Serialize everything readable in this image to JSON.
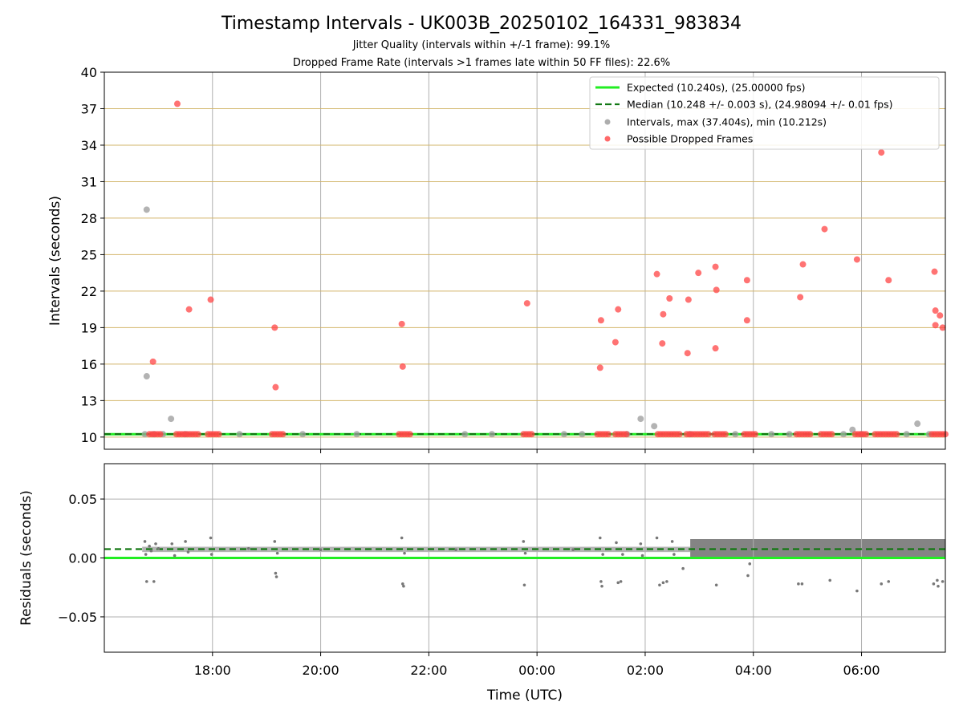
{
  "title": "Timestamp Intervals - UK003B_20250102_164331_983834",
  "subtitle1": "Jitter Quality (intervals within +/-1 frame): 99.1%",
  "subtitle2": "Dropped Frame Rate (intervals >1 frames late within 50 FF files): 22.6%",
  "colors": {
    "expected": "#22ee22",
    "median": "#117711",
    "interval_points": "#999999",
    "dropped_points": "#ff4444",
    "residual_points": "#777777",
    "gridline_top": "#d2b56a",
    "gridline": "#b0b0b0"
  },
  "chart_data": [
    {
      "type": "scatter",
      "ylabel": "Intervals (seconds)",
      "xlabel": "",
      "ylim": [
        9,
        40
      ],
      "yticks": [
        10,
        13,
        16,
        19,
        22,
        25,
        28,
        31,
        34,
        37,
        40
      ],
      "xlim_hours": [
        16.0,
        31.55
      ],
      "legend_placement": "top-right",
      "legend": [
        "Expected (10.240s), (25.00000 fps)",
        "Median (10.248 +/- 0.003 s), (24.98094 +/- 0.01 fps)",
        "Intervals, max (37.404s), min (10.212s)",
        "Possible Dropped Frames"
      ],
      "expected_value": 10.24,
      "median_value": 10.248,
      "series": [
        {
          "name": "Intervals, max (37.404s), min (10.212s)",
          "points": [
            [
              "16:47",
              28.7
            ],
            [
              "16:47",
              15.0
            ],
            [
              "17:14",
              11.5
            ],
            [
              "01:55",
              11.5
            ],
            [
              "02:10",
              10.9
            ],
            [
              "05:50",
              10.6
            ],
            [
              "07:02",
              11.1
            ],
            [
              "16:45",
              10.24
            ],
            [
              "16:55",
              10.24
            ],
            [
              "17:05",
              10.24
            ],
            [
              "17:30",
              10.24
            ],
            [
              "18:30",
              10.24
            ],
            [
              "19:40",
              10.24
            ],
            [
              "20:40",
              10.24
            ],
            [
              "22:40",
              10.24
            ],
            [
              "23:10",
              10.24
            ],
            [
              "00:30",
              10.24
            ],
            [
              "00:50",
              10.24
            ],
            [
              "01:40",
              10.24
            ],
            [
              "02:50",
              10.24
            ],
            [
              "03:40",
              10.24
            ],
            [
              "04:20",
              10.24
            ],
            [
              "04:40",
              10.24
            ],
            [
              "05:40",
              10.24
            ],
            [
              "06:00",
              10.24
            ],
            [
              "06:50",
              10.24
            ],
            [
              "07:15",
              10.24
            ]
          ]
        },
        {
          "name": "Possible Dropped Frames",
          "points": [
            [
              "17:21",
              37.4
            ],
            [
              "16:54",
              16.2
            ],
            [
              "17:34",
              20.5
            ],
            [
              "17:58",
              21.3
            ],
            [
              "19:09",
              19.0
            ],
            [
              "19:10",
              14.1
            ],
            [
              "21:30",
              19.3
            ],
            [
              "21:31",
              15.8
            ],
            [
              "23:49",
              21.0
            ],
            [
              "01:11",
              19.6
            ],
            [
              "01:10",
              15.7
            ],
            [
              "01:27",
              17.8
            ],
            [
              "01:30",
              20.5
            ],
            [
              "02:13",
              23.4
            ],
            [
              "02:19",
              17.7
            ],
            [
              "02:20",
              20.1
            ],
            [
              "02:27",
              21.4
            ],
            [
              "02:47",
              16.9
            ],
            [
              "02:48",
              21.3
            ],
            [
              "02:59",
              23.5
            ],
            [
              "03:18",
              24.0
            ],
            [
              "03:19",
              22.1
            ],
            [
              "03:18",
              17.3
            ],
            [
              "03:53",
              22.9
            ],
            [
              "03:53",
              19.6
            ],
            [
              "04:52",
              21.5
            ],
            [
              "04:55",
              24.2
            ],
            [
              "05:19",
              27.1
            ],
            [
              "05:55",
              24.6
            ],
            [
              "06:22",
              33.4
            ],
            [
              "06:30",
              22.9
            ],
            [
              "07:21",
              23.6
            ],
            [
              "07:22",
              20.4
            ],
            [
              "07:22",
              19.2
            ],
            [
              "07:27",
              20.0
            ],
            [
              "07:30",
              19.0
            ],
            [
              "16:50",
              10.24
            ],
            [
              "16:53",
              10.24
            ],
            [
              "16:56",
              10.24
            ],
            [
              "16:59",
              10.24
            ],
            [
              "17:02",
              10.24
            ],
            [
              "17:20",
              10.24
            ],
            [
              "17:23",
              10.24
            ],
            [
              "17:26",
              10.24
            ],
            [
              "17:29",
              10.24
            ],
            [
              "17:32",
              10.24
            ],
            [
              "17:35",
              10.24
            ],
            [
              "17:38",
              10.24
            ],
            [
              "17:41",
              10.24
            ],
            [
              "17:44",
              10.24
            ],
            [
              "17:55",
              10.24
            ],
            [
              "17:58",
              10.24
            ],
            [
              "18:01",
              10.24
            ],
            [
              "18:04",
              10.24
            ],
            [
              "18:07",
              10.24
            ],
            [
              "19:06",
              10.24
            ],
            [
              "19:09",
              10.24
            ],
            [
              "19:12",
              10.24
            ],
            [
              "19:15",
              10.24
            ],
            [
              "19:18",
              10.24
            ],
            [
              "21:27",
              10.24
            ],
            [
              "21:30",
              10.24
            ],
            [
              "21:33",
              10.24
            ],
            [
              "21:36",
              10.24
            ],
            [
              "21:39",
              10.24
            ],
            [
              "23:45",
              10.24
            ],
            [
              "23:48",
              10.24
            ],
            [
              "23:51",
              10.24
            ],
            [
              "23:54",
              10.24
            ],
            [
              "01:07",
              10.24
            ],
            [
              "01:10",
              10.24
            ],
            [
              "01:13",
              10.24
            ],
            [
              "01:16",
              10.24
            ],
            [
              "01:19",
              10.24
            ],
            [
              "01:27",
              10.24
            ],
            [
              "01:30",
              10.24
            ],
            [
              "01:33",
              10.24
            ],
            [
              "01:36",
              10.24
            ],
            [
              "01:39",
              10.24
            ],
            [
              "02:14",
              10.24
            ],
            [
              "02:17",
              10.24
            ],
            [
              "02:20",
              10.24
            ],
            [
              "02:23",
              10.24
            ],
            [
              "02:26",
              10.24
            ],
            [
              "02:29",
              10.24
            ],
            [
              "02:32",
              10.24
            ],
            [
              "02:35",
              10.24
            ],
            [
              "02:38",
              10.24
            ],
            [
              "02:46",
              10.24
            ],
            [
              "02:49",
              10.24
            ],
            [
              "02:52",
              10.24
            ],
            [
              "02:55",
              10.24
            ],
            [
              "02:58",
              10.24
            ],
            [
              "03:01",
              10.24
            ],
            [
              "03:04",
              10.24
            ],
            [
              "03:07",
              10.24
            ],
            [
              "03:10",
              10.24
            ],
            [
              "03:17",
              10.24
            ],
            [
              "03:20",
              10.24
            ],
            [
              "03:23",
              10.24
            ],
            [
              "03:26",
              10.24
            ],
            [
              "03:29",
              10.24
            ],
            [
              "03:50",
              10.24
            ],
            [
              "03:53",
              10.24
            ],
            [
              "03:56",
              10.24
            ],
            [
              "03:59",
              10.24
            ],
            [
              "04:02",
              10.24
            ],
            [
              "04:48",
              10.24
            ],
            [
              "04:51",
              10.24
            ],
            [
              "04:54",
              10.24
            ],
            [
              "04:57",
              10.24
            ],
            [
              "05:00",
              10.24
            ],
            [
              "05:03",
              10.24
            ],
            [
              "05:15",
              10.24
            ],
            [
              "05:18",
              10.24
            ],
            [
              "05:21",
              10.24
            ],
            [
              "05:24",
              10.24
            ],
            [
              "05:27",
              10.24
            ],
            [
              "05:53",
              10.24
            ],
            [
              "05:56",
              10.24
            ],
            [
              "05:59",
              10.24
            ],
            [
              "06:02",
              10.24
            ],
            [
              "06:05",
              10.24
            ],
            [
              "06:15",
              10.24
            ],
            [
              "06:18",
              10.24
            ],
            [
              "06:21",
              10.24
            ],
            [
              "06:24",
              10.24
            ],
            [
              "06:27",
              10.24
            ],
            [
              "06:30",
              10.24
            ],
            [
              "06:33",
              10.24
            ],
            [
              "06:36",
              10.24
            ],
            [
              "06:39",
              10.24
            ],
            [
              "07:18",
              10.24
            ],
            [
              "07:21",
              10.24
            ],
            [
              "07:24",
              10.24
            ],
            [
              "07:27",
              10.24
            ],
            [
              "07:30",
              10.24
            ],
            [
              "07:33",
              10.24
            ]
          ]
        }
      ]
    },
    {
      "type": "scatter",
      "ylabel": "Residuals (seconds)",
      "xlabel": "Time (UTC)",
      "ylim": [
        -0.08,
        0.08
      ],
      "yticks": [
        0.05,
        0.0,
        -0.05
      ],
      "ytick_labels": [
        "0.05",
        "0.00",
        "−0.05"
      ],
      "xlim_hours": [
        16.0,
        31.55
      ],
      "xticks": [
        "18:00",
        "20:00",
        "22:00",
        "00:00",
        "02:00",
        "04:00",
        "06:00"
      ],
      "expected_value": 0.0,
      "median_value": 0.0075,
      "series": [
        {
          "name": "",
          "points": [
            [
              "16:45",
              0.014
            ],
            [
              "16:46",
              0.003
            ],
            [
              "16:47",
              -0.02
            ],
            [
              "16:50",
              0.01
            ],
            [
              "16:52",
              0.006
            ],
            [
              "16:55",
              -0.02
            ],
            [
              "16:57",
              0.012
            ],
            [
              "17:00",
              0.008
            ],
            [
              "17:15",
              0.012
            ],
            [
              "17:18",
              0.002
            ],
            [
              "17:30",
              0.014
            ],
            [
              "17:33",
              0.005
            ],
            [
              "17:58",
              0.017
            ],
            [
              "17:59",
              0.003
            ],
            [
              "18:40",
              0.008
            ],
            [
              "19:09",
              0.014
            ],
            [
              "19:10",
              -0.013
            ],
            [
              "19:11",
              -0.016
            ],
            [
              "19:12",
              0.004
            ],
            [
              "20:00",
              0.007
            ],
            [
              "21:30",
              0.017
            ],
            [
              "21:31",
              -0.022
            ],
            [
              "21:32",
              -0.024
            ],
            [
              "21:33",
              0.004
            ],
            [
              "22:30",
              0.007
            ],
            [
              "23:45",
              0.014
            ],
            [
              "23:46",
              -0.023
            ],
            [
              "23:47",
              0.004
            ],
            [
              "00:40",
              0.007
            ],
            [
              "01:10",
              0.017
            ],
            [
              "01:11",
              -0.02
            ],
            [
              "01:12",
              -0.024
            ],
            [
              "01:13",
              0.003
            ],
            [
              "01:28",
              0.013
            ],
            [
              "01:30",
              -0.021
            ],
            [
              "01:33",
              -0.02
            ],
            [
              "01:35",
              0.003
            ],
            [
              "01:55",
              0.012
            ],
            [
              "01:57",
              0.002
            ],
            [
              "02:13",
              0.017
            ],
            [
              "02:16",
              -0.023
            ],
            [
              "02:20",
              -0.021
            ],
            [
              "02:24",
              -0.02
            ],
            [
              "02:30",
              0.014
            ],
            [
              "02:32",
              0.003
            ],
            [
              "02:42",
              -0.009
            ],
            [
              "03:19",
              -0.023
            ],
            [
              "03:54",
              -0.015
            ],
            [
              "03:56",
              -0.005
            ],
            [
              "04:50",
              -0.022
            ],
            [
              "04:54",
              -0.022
            ],
            [
              "05:25",
              -0.019
            ],
            [
              "05:55",
              -0.028
            ],
            [
              "06:22",
              -0.022
            ],
            [
              "06:30",
              -0.02
            ],
            [
              "07:20",
              -0.022
            ],
            [
              "07:24",
              -0.019
            ],
            [
              "07:25",
              -0.024
            ],
            [
              "07:30",
              -0.02
            ]
          ]
        }
      ]
    }
  ]
}
